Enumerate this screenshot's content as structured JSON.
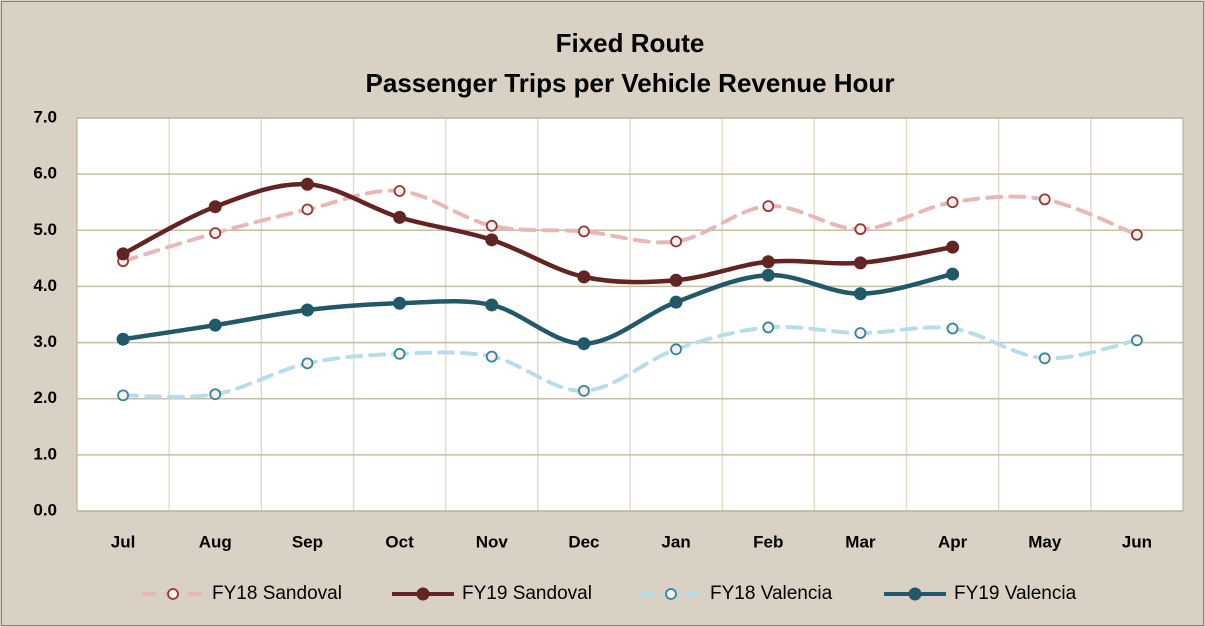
{
  "chart_data": {
    "type": "line",
    "title": "Fixed Route",
    "subtitle": "Passenger Trips per Vehicle Revenue Hour",
    "categories": [
      "Jul",
      "Aug",
      "Sep",
      "Oct",
      "Nov",
      "Dec",
      "Jan",
      "Feb",
      "Mar",
      "Apr",
      "May",
      "Jun"
    ],
    "series": [
      {
        "name": "FY18 Sandoval",
        "color": "#e6b8b7",
        "marker_color": "#953735",
        "style": "dashed",
        "values": [
          4.45,
          4.95,
          5.37,
          5.7,
          5.08,
          4.98,
          4.8,
          5.43,
          5.02,
          5.5,
          5.55,
          4.92
        ]
      },
      {
        "name": "FY19 Sandoval",
        "color": "#632523",
        "marker_color": "#632523",
        "style": "solid",
        "values": [
          4.58,
          5.42,
          5.82,
          5.23,
          4.83,
          4.17,
          4.11,
          4.44,
          4.42,
          4.7,
          null,
          null
        ]
      },
      {
        "name": "FY18 Valencia",
        "color": "#b7dde8",
        "marker_color": "#31859c",
        "style": "dashed",
        "values": [
          2.06,
          2.08,
          2.63,
          2.8,
          2.75,
          2.14,
          2.88,
          3.27,
          3.17,
          3.25,
          2.72,
          3.04
        ]
      },
      {
        "name": "FY19 Valencia",
        "color": "#215968",
        "marker_color": "#215968",
        "style": "solid",
        "values": [
          3.06,
          3.31,
          3.58,
          3.7,
          3.67,
          2.98,
          3.72,
          4.2,
          3.87,
          4.22,
          null,
          null
        ]
      }
    ],
    "ylim": [
      0,
      7
    ],
    "yticks": [
      {
        "value": 0,
        "label": "0.0"
      },
      {
        "value": 1,
        "label": "1.0"
      },
      {
        "value": 2,
        "label": "2.0"
      },
      {
        "value": 3,
        "label": "3.0"
      },
      {
        "value": 4,
        "label": "4.0"
      },
      {
        "value": 5,
        "label": "5.0"
      },
      {
        "value": 6,
        "label": "6.0"
      },
      {
        "value": 7,
        "label": "7.0"
      }
    ],
    "grid": true,
    "smooth": true,
    "legend": "bottom"
  }
}
